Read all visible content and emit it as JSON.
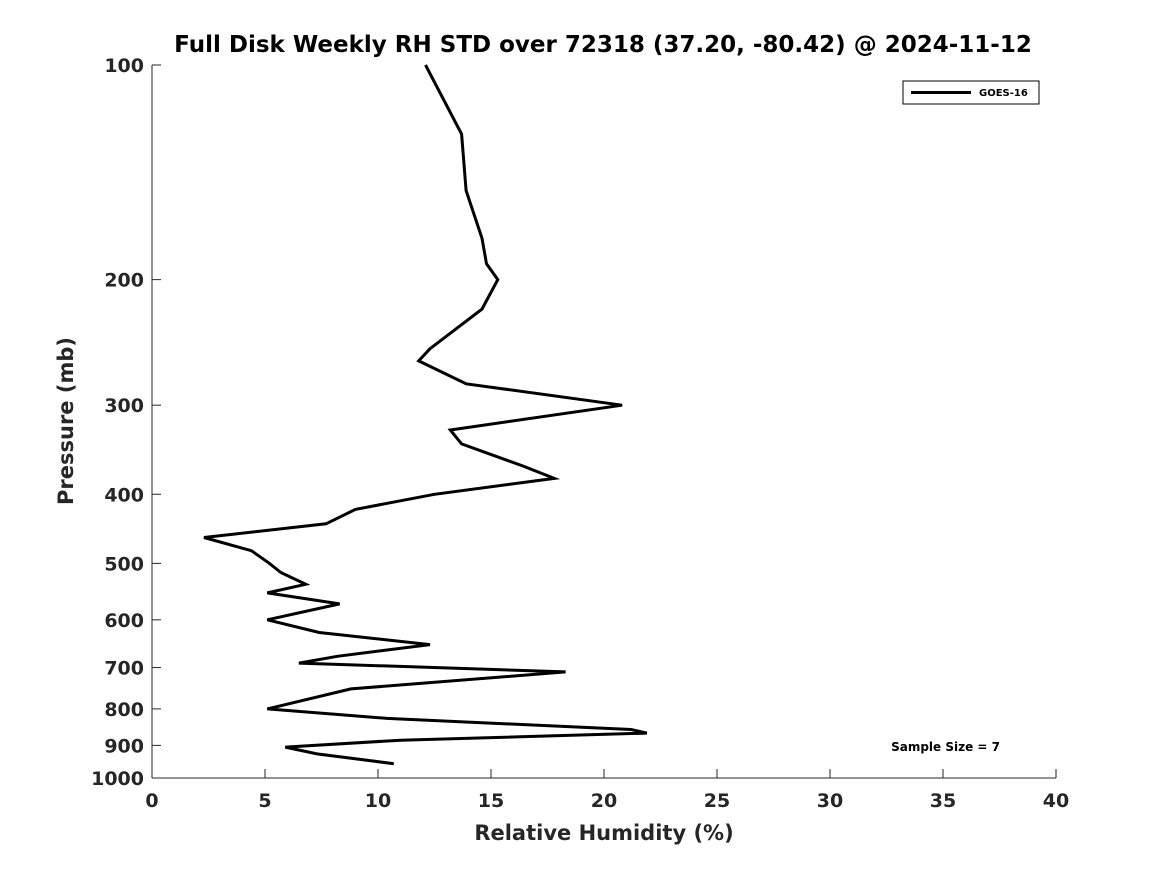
{
  "chart_data": {
    "type": "line",
    "title": "Full Disk Weekly RH STD over 72318 (37.20, -80.42) @ 2024-11-12",
    "xlabel": "Relative Humidity (%)",
    "ylabel": "Pressure (mb)",
    "xlim": [
      0,
      40
    ],
    "ylim": [
      100,
      1000
    ],
    "yscale": "log",
    "y_reversed": true,
    "grid": false,
    "legend_position": "top-right",
    "xticks": [
      "0",
      "5",
      "10",
      "15",
      "20",
      "25",
      "30",
      "35",
      "40"
    ],
    "yticks": [
      "100",
      "200",
      "300",
      "400",
      "500",
      "600",
      "700",
      "800",
      "900",
      "1000"
    ],
    "annotation": "Sample Size = 7",
    "series": [
      {
        "name": "GOES-16",
        "color": "#000000",
        "points": [
          [
            12.1,
            100
          ],
          [
            13.7,
            125
          ],
          [
            13.9,
            150
          ],
          [
            14.6,
            175
          ],
          [
            14.8,
            190
          ],
          [
            15.3,
            200
          ],
          [
            14.6,
            220
          ],
          [
            12.3,
            250
          ],
          [
            11.8,
            260
          ],
          [
            13.9,
            280
          ],
          [
            20.8,
            300
          ],
          [
            13.2,
            325
          ],
          [
            13.7,
            340
          ],
          [
            16.4,
            365
          ],
          [
            17.8,
            380
          ],
          [
            12.5,
            400
          ],
          [
            9.0,
            420
          ],
          [
            7.7,
            440
          ],
          [
            2.3,
            460
          ],
          [
            4.4,
            480
          ],
          [
            5.2,
            500
          ],
          [
            5.7,
            515
          ],
          [
            6.8,
            535
          ],
          [
            5.1,
            550
          ],
          [
            8.3,
            570
          ],
          [
            5.1,
            600
          ],
          [
            7.4,
            625
          ],
          [
            12.3,
            650
          ],
          [
            8.2,
            675
          ],
          [
            6.5,
            690
          ],
          [
            18.3,
            710
          ],
          [
            8.8,
            750
          ],
          [
            5.1,
            800
          ],
          [
            10.4,
            825
          ],
          [
            21.2,
            855
          ],
          [
            21.9,
            865
          ],
          [
            11.0,
            885
          ],
          [
            5.9,
            905
          ],
          [
            7.3,
            925
          ],
          [
            10.7,
            955
          ]
        ]
      }
    ]
  }
}
